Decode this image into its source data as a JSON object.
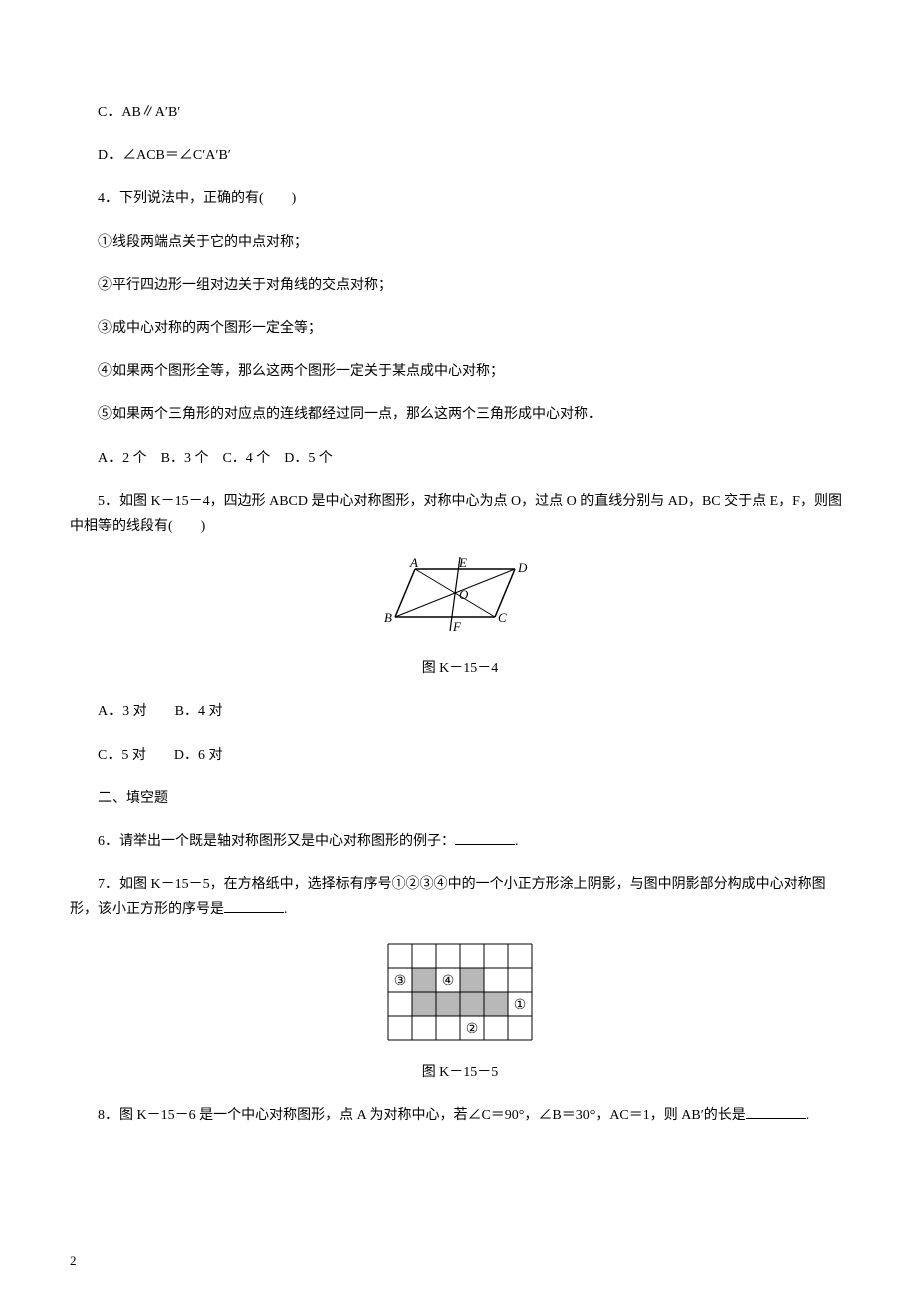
{
  "q3": {
    "optC": "C．AB∥A′B′",
    "optD": "D．∠ACB＝∠C′A′B′"
  },
  "q4": {
    "stem": "4．下列说法中，正确的有(　　)",
    "s1": "①线段两端点关于它的中点对称；",
    "s2": "②平行四边形一组对边关于对角线的交点对称；",
    "s3": "③成中心对称的两个图形一定全等；",
    "s4": "④如果两个图形全等，那么这两个图形一定关于某点成中心对称；",
    "s5": "⑤如果两个三角形的对应点的连线都经过同一点，那么这两个三角形成中心对称．",
    "opts": "A．2 个　B．3 个　C．4 个　D．5 个"
  },
  "q5": {
    "stem": "5．如图 K－15－4，四边形 ABCD 是中心对称图形，对称中心为点 O，过点 O 的直线分别与 AD，BC 交于点 E，F，则图中相等的线段有(　　)",
    "caption": "图 K－15－4",
    "optsAB": "A．3 对　　B．4 对",
    "optsCD": "C．5 对　　D．6 对",
    "labels": {
      "A": "A",
      "B": "B",
      "C": "C",
      "D": "D",
      "E": "E",
      "F": "F",
      "O": "O"
    }
  },
  "section2": "二、填空题",
  "q6": {
    "before": "6．请举出一个既是轴对称图形又是中心对称图形的例子：",
    "after": "."
  },
  "q7": {
    "stem": "7．如图 K－15－5，在方格纸中，选择标有序号①②③④中的一个小正方形涂上阴影，与图中阴影部分构成中心对称图形，该小正方形的序号是",
    "after": ".",
    "caption": "图 K－15－5",
    "labels": {
      "n1": "①",
      "n2": "②",
      "n3": "③",
      "n4": "④"
    },
    "colors": {
      "grid": "#000000",
      "fill": "#b8b8b8",
      "bg": "#ffffff"
    }
  },
  "q8": {
    "before": "8．图 K－15－6 是一个中心对称图形，点 A 为对称中心，若∠C＝90°，∠B＝30°，AC＝1，则 AB′的长是",
    "after": "."
  },
  "pageNumber": "2"
}
